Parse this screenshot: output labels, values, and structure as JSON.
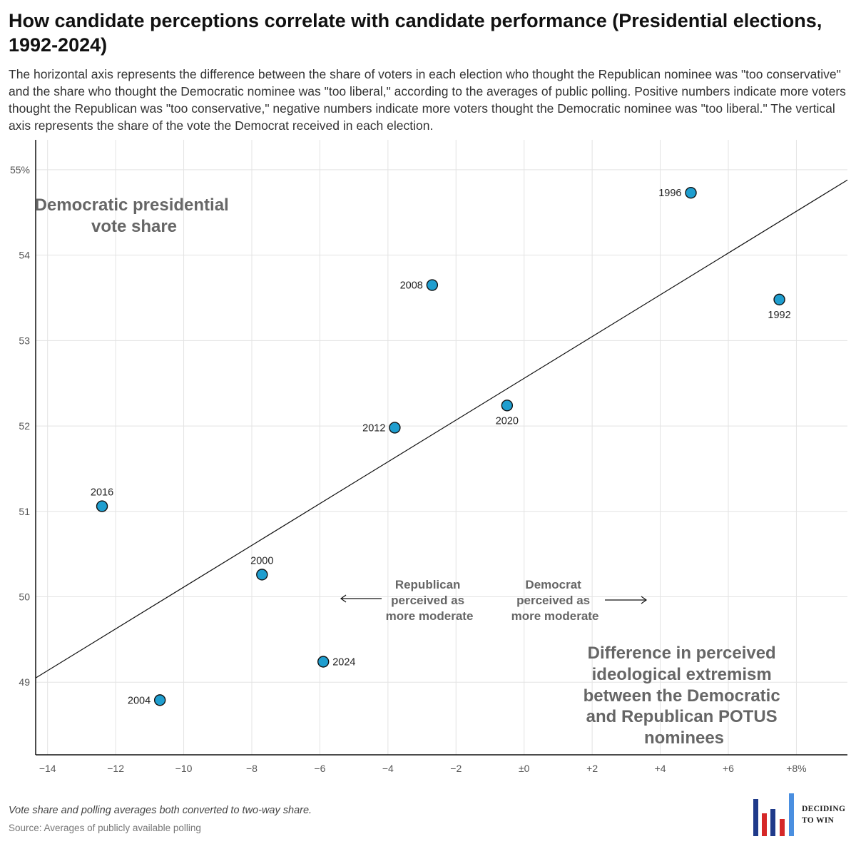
{
  "header": {
    "title": "How candidate perceptions correlate with candidate performance (Presidential elections, 1992-2024)",
    "subtitle": "The horizontal axis represents the difference between the share of voters in each election who thought the Republican nominee was \"too conservative\" and the share who thought the Democratic nominee was \"too liberal,\" according to the averages of public polling. Positive numbers indicate more voters thought the Republican was \"too conservative,\" negative numbers indicate more voters thought the Democratic nominee was \"too liberal.\" The vertical axis represents the share of the vote the Democrat received in each election."
  },
  "chart_data": {
    "type": "scatter",
    "points": [
      {
        "label": "1992",
        "x": 7.5,
        "y": 53.48,
        "label_pos": "below"
      },
      {
        "label": "1996",
        "x": 4.9,
        "y": 54.73,
        "label_pos": "left"
      },
      {
        "label": "2000",
        "x": -7.7,
        "y": 50.26,
        "label_pos": "above"
      },
      {
        "label": "2004",
        "x": -10.7,
        "y": 48.79,
        "label_pos": "left"
      },
      {
        "label": "2008",
        "x": -2.7,
        "y": 53.65,
        "label_pos": "left"
      },
      {
        "label": "2012",
        "x": -3.8,
        "y": 51.98,
        "label_pos": "left"
      },
      {
        "label": "2016",
        "x": -12.4,
        "y": 51.06,
        "label_pos": "above"
      },
      {
        "label": "2020",
        "x": -0.5,
        "y": 52.24,
        "label_pos": "below"
      },
      {
        "label": "2024",
        "x": -5.9,
        "y": 49.24,
        "label_pos": "right"
      }
    ],
    "trendline": {
      "x": [
        -14.35,
        9.5
      ],
      "y": [
        49.05,
        54.88
      ]
    },
    "xlim": [
      -14.35,
      9.5
    ],
    "ylim": [
      48.15,
      55.35
    ],
    "x_ticks": [
      -14,
      -12,
      -10,
      -8,
      -6,
      -4,
      -2,
      0,
      2,
      4,
      6,
      8
    ],
    "x_tick_labels": [
      "−14",
      "−12",
      "−10",
      "−8",
      "−6",
      "−4",
      "−2",
      "±0",
      "+2",
      "+4",
      "+6",
      "+8%"
    ],
    "y_ticks": [
      49,
      50,
      51,
      52,
      53,
      54,
      55
    ],
    "y_tick_labels": [
      "49",
      "50",
      "51",
      "52",
      "53",
      "54",
      "55%"
    ],
    "grid": true,
    "ylabel": "Democratic presidential vote share",
    "xlabel": "Difference in perceived ideological extremism between the Democratic and Republican POTUS nominees",
    "annotations": {
      "left_arrow_label": "Republican perceived as more moderate",
      "right_arrow_label": "Democrat perceived as more moderate"
    },
    "colors": {
      "point_fill": "#1f9ecf",
      "point_stroke": "#111111",
      "grid": "#e3e3e3",
      "label_gray": "#666666",
      "line": "#111111"
    }
  },
  "footer": {
    "note": "Vote share and polling averages both converted to two-way share.",
    "source": "Source: Averages of publicly available polling",
    "logo_text": "DECIDING TO WIN",
    "logo_colors": [
      "#1f3a8a",
      "#d62828",
      "#1f3a8a",
      "#d62828",
      "#4a8fe0"
    ]
  }
}
